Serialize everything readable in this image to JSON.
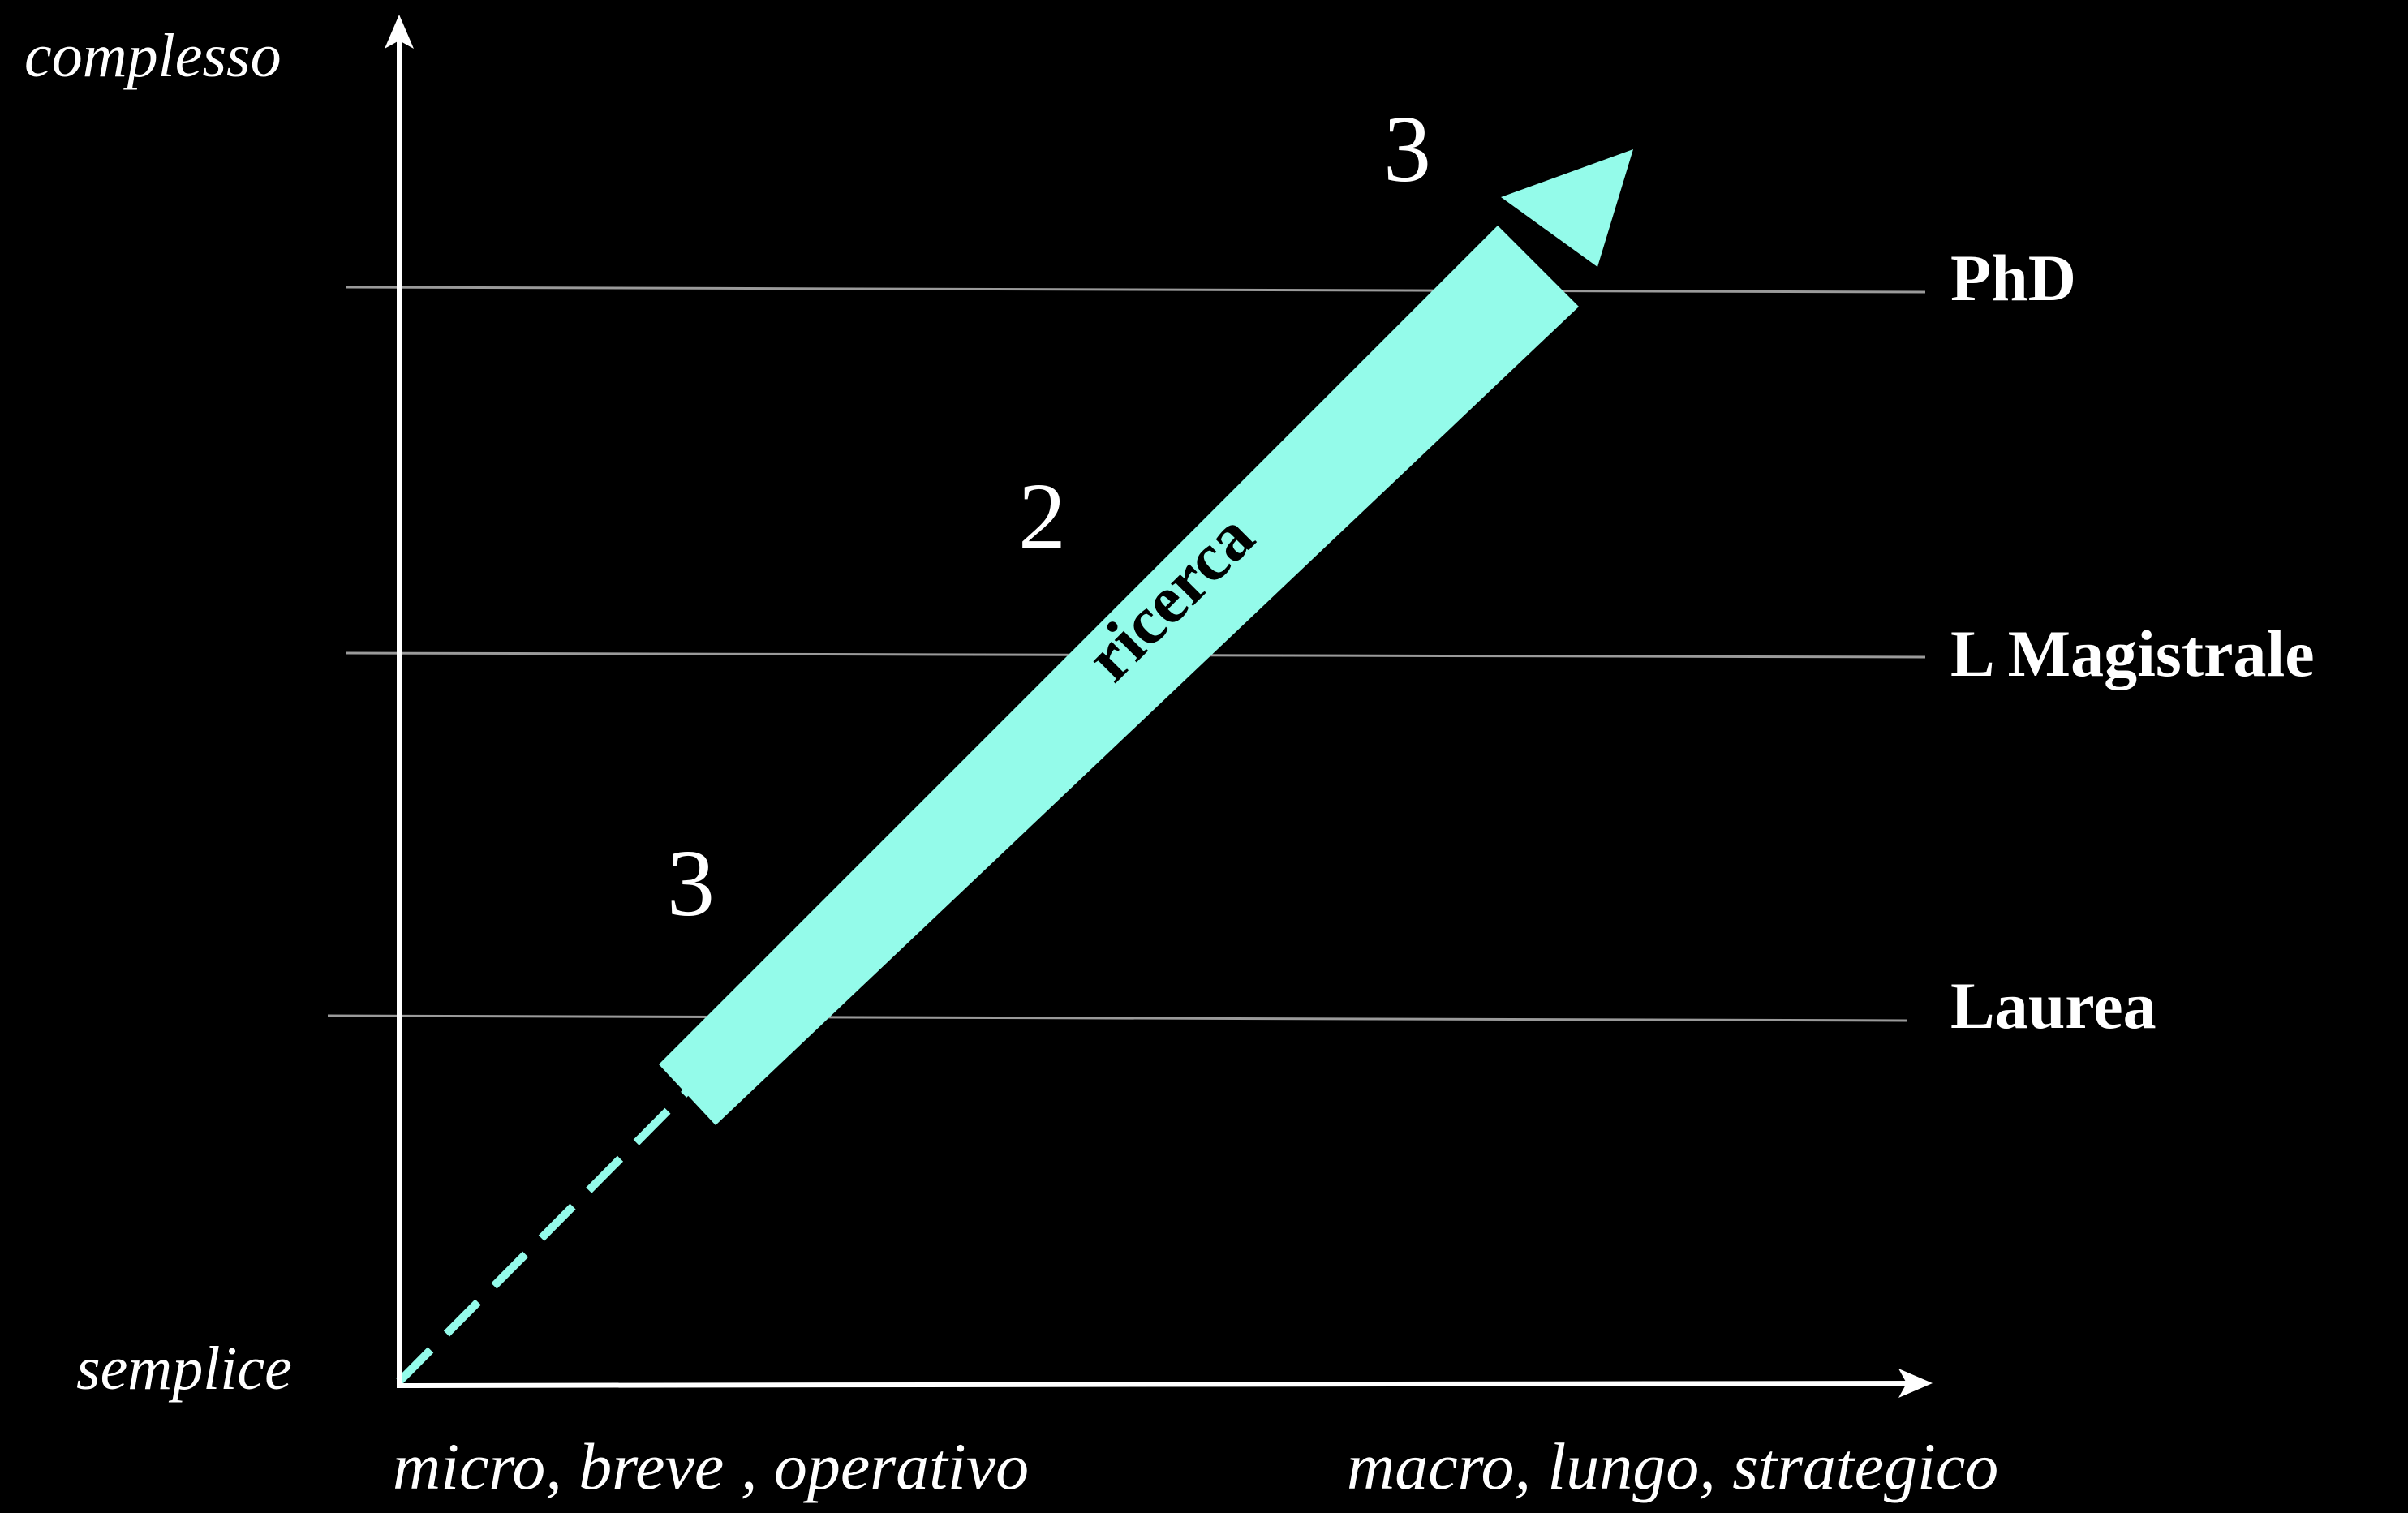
{
  "colors": {
    "background": "#000000",
    "axis": "#ffffff",
    "level_line": "#9a9a9a",
    "arrow_fill": "#94fbea",
    "arrow_text": "#000000",
    "text": "#ffffff"
  },
  "axes": {
    "y_top_label": "complesso",
    "y_bottom_label": "semplice",
    "x_left_label": "micro, breve , operativo",
    "x_right_label": "macro, lungo, strategico"
  },
  "levels": [
    {
      "label": "PhD"
    },
    {
      "label": "L Magistrale"
    },
    {
      "label": "Laurea"
    }
  ],
  "arrow": {
    "label": "ricerca"
  },
  "markers": [
    {
      "label": "3"
    },
    {
      "label": "2"
    },
    {
      "label": "3"
    }
  ]
}
